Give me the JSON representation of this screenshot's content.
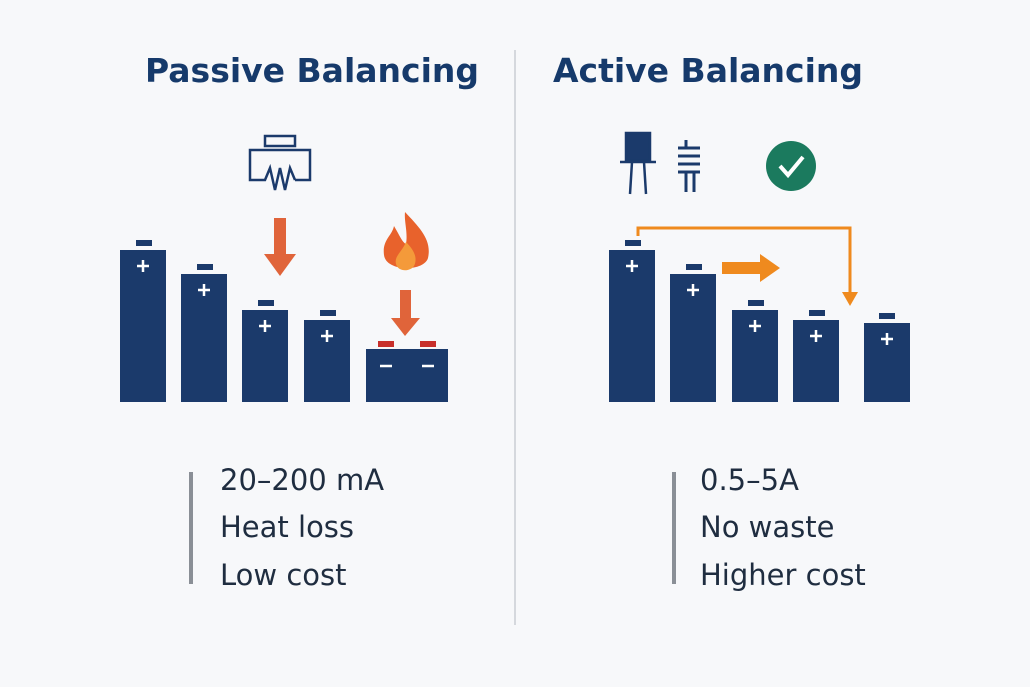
{
  "left": {
    "title": "Passive Balancing",
    "lines": [
      "20–200 mA",
      "Heat loss",
      "Low cost"
    ]
  },
  "right": {
    "title": "Active Balancing",
    "lines": [
      "0.5–5A",
      "No waste",
      "Higher cost"
    ]
  }
}
